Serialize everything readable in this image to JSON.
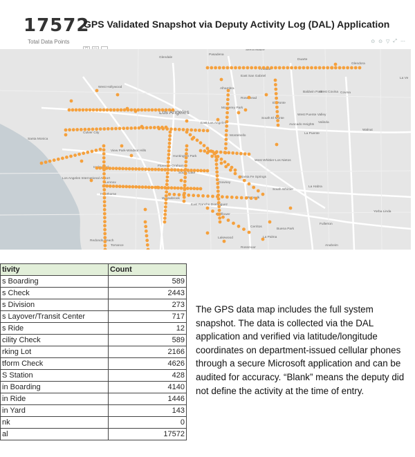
{
  "kpi": {
    "value": "17572",
    "label": "Total Data Points"
  },
  "title": "GPS Validated Snapshot via Deputy Activity Log (DAL) Application",
  "toolbar": {
    "icons": [
      "filter-icon",
      "focus-icon",
      "more-options-icon"
    ],
    "right_icons": [
      "pin-icon",
      "pin-icon",
      "filter-icon",
      "expand-icon",
      "more-options-icon"
    ]
  },
  "map": {
    "place_labels": [
      "Glendale",
      "Pasadena",
      "Sierra Madre",
      "Arcadia",
      "Duarte",
      "Glendora",
      "La Ve",
      "East San Gabriel",
      "Alhambra",
      "Rosemead",
      "El Monte",
      "Baldwin Park",
      "West Covina",
      "Covina",
      "West Hollywood",
      "Los Angeles",
      "Monterey Park",
      "South El Monte",
      "West Puente Valley",
      "Avocado Heights",
      "Valinda",
      "Culver City",
      "East Los Angeles",
      "Montebello",
      "Walnut",
      "La Puente",
      "Santa Monica",
      "View Park-Windsor Hills",
      "Huntington Park",
      "Florence-Graham",
      "Inglewood",
      "South Gate",
      "West Whittier-Los Nietos",
      "Los Angeles International Airport",
      "Lennox",
      "Hawthorne",
      "Santa Fe Springs",
      "Downey",
      "South Whittier",
      "La Habra",
      "Willowbrook",
      "East Rancho Dominguez",
      "Norwalk",
      "Bellflower",
      "Cerritos",
      "Buena Park",
      "Fullerton",
      "Yorba Linda",
      "Redondo Beach",
      "Torrance",
      "Lakewood",
      "La Palma",
      "Anaheim",
      "Rossmoor"
    ],
    "marker_color": "#f5a03c",
    "land_color": "#e6e6e6",
    "water_color": "#c7cfd4",
    "road_color": "#ffffff"
  },
  "table": {
    "headers": [
      "tivity",
      "Count"
    ],
    "rows": [
      {
        "activity": "s Boarding",
        "count": "589"
      },
      {
        "activity": "s Check",
        "count": "2443"
      },
      {
        "activity": "s Division",
        "count": "273"
      },
      {
        "activity": "s Layover/Transit Center",
        "count": "717"
      },
      {
        "activity": "s Ride",
        "count": "12"
      },
      {
        "activity": "cility Check",
        "count": "589"
      },
      {
        "activity": "rking Lot",
        "count": "2166"
      },
      {
        "activity": "tform Check",
        "count": "4626"
      },
      {
        "activity": "S Station",
        "count": "428"
      },
      {
        "activity": "in Boarding",
        "count": "4140"
      },
      {
        "activity": "in Ride",
        "count": "1446"
      },
      {
        "activity": "in Yard",
        "count": "143"
      },
      {
        "activity": "nk",
        "count": "0"
      },
      {
        "activity": "al",
        "count": "17572"
      }
    ],
    "header_fill": "#e2efd9"
  },
  "note": "The GPS data map includes the full system snapshot. The data is collected via the DAL application and verified via latitude/longitude coordinates on department-issued cellular phones through a secure Microsoft application and can be audited for accuracy. “Blank” means the deputy did not define the activity at the time of entry."
}
